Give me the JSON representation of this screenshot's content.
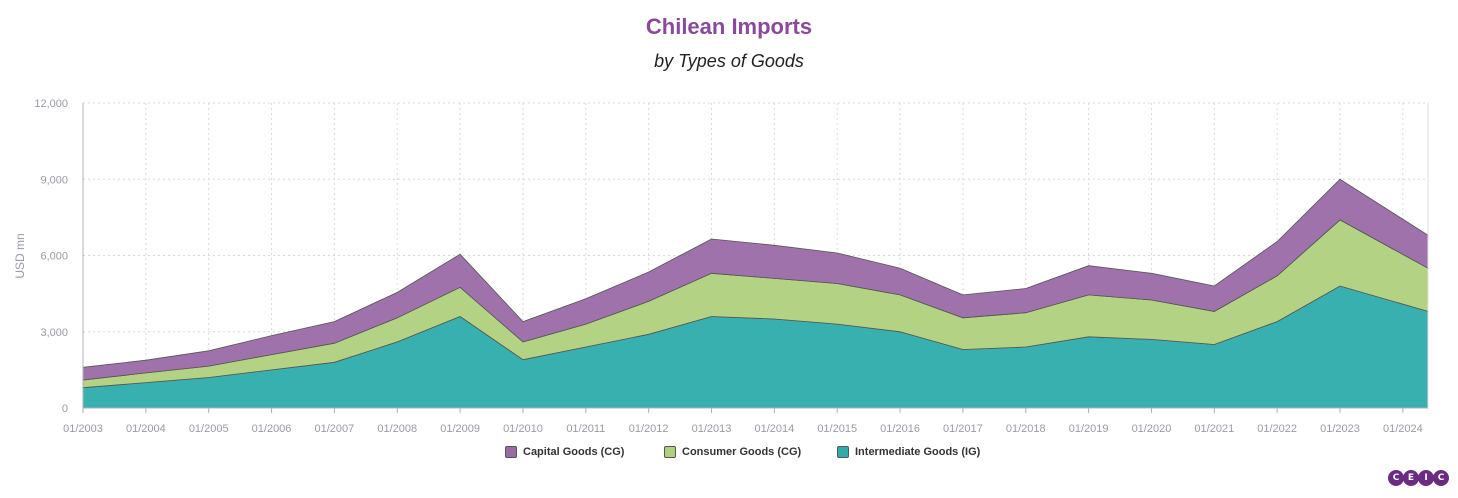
{
  "header": {
    "title": "Chilean Imports",
    "subtitle": "by Types of Goods"
  },
  "colors": {
    "capital": "#9a6aa6",
    "consumer": "#afd07d",
    "intermediate": "#2eacac",
    "title": "#8a4a9b"
  },
  "logo": {
    "letters": [
      "C",
      "E",
      "I",
      "C"
    ]
  },
  "chart_data": {
    "type": "area",
    "stacked": true,
    "title": "Chilean Imports",
    "subtitle": "by Types of Goods",
    "ylabel": "USD mn",
    "ylim": [
      0,
      12000
    ],
    "yticks": [
      0,
      3000,
      6000,
      9000,
      12000
    ],
    "ytick_labels": [
      "0",
      "3,000",
      "6,000",
      "9,000",
      "12,000"
    ],
    "xtick_labels": [
      "01/2003",
      "01/2004",
      "01/2005",
      "01/2006",
      "01/2007",
      "01/2008",
      "01/2009",
      "01/2010",
      "01/2011",
      "01/2012",
      "01/2013",
      "01/2014",
      "01/2015",
      "01/2016",
      "01/2017",
      "01/2018",
      "01/2019",
      "01/2020",
      "01/2021",
      "01/2022",
      "01/2023",
      "01/2024"
    ],
    "x_start": "2003-01",
    "x_end": "2024-05",
    "frequency": "yearly",
    "grid": true,
    "legend_position": "bottom",
    "series": [
      {
        "name": "Intermediate Goods (IG)",
        "color": "#2eacac",
        "values": [
          800,
          1000,
          1200,
          1500,
          1800,
          2600,
          3600,
          1900,
          2400,
          2900,
          3600,
          3500,
          3300,
          3000,
          2300,
          2400,
          2800,
          2700,
          2500,
          3400,
          4800,
          3800
        ]
      },
      {
        "name": "Consumer Goods (CG)",
        "color": "#afd07d",
        "values": [
          300,
          380,
          450,
          600,
          750,
          950,
          1150,
          700,
          900,
          1300,
          1700,
          1600,
          1600,
          1450,
          1250,
          1350,
          1650,
          1550,
          1300,
          1800,
          2600,
          1700
        ]
      },
      {
        "name": "Capital Goods (CG)",
        "color": "#9a6aa6",
        "values": [
          500,
          500,
          600,
          750,
          850,
          1000,
          1300,
          800,
          1000,
          1150,
          1350,
          1300,
          1200,
          1050,
          900,
          950,
          1150,
          1050,
          1000,
          1350,
          1600,
          1300
        ]
      }
    ]
  }
}
